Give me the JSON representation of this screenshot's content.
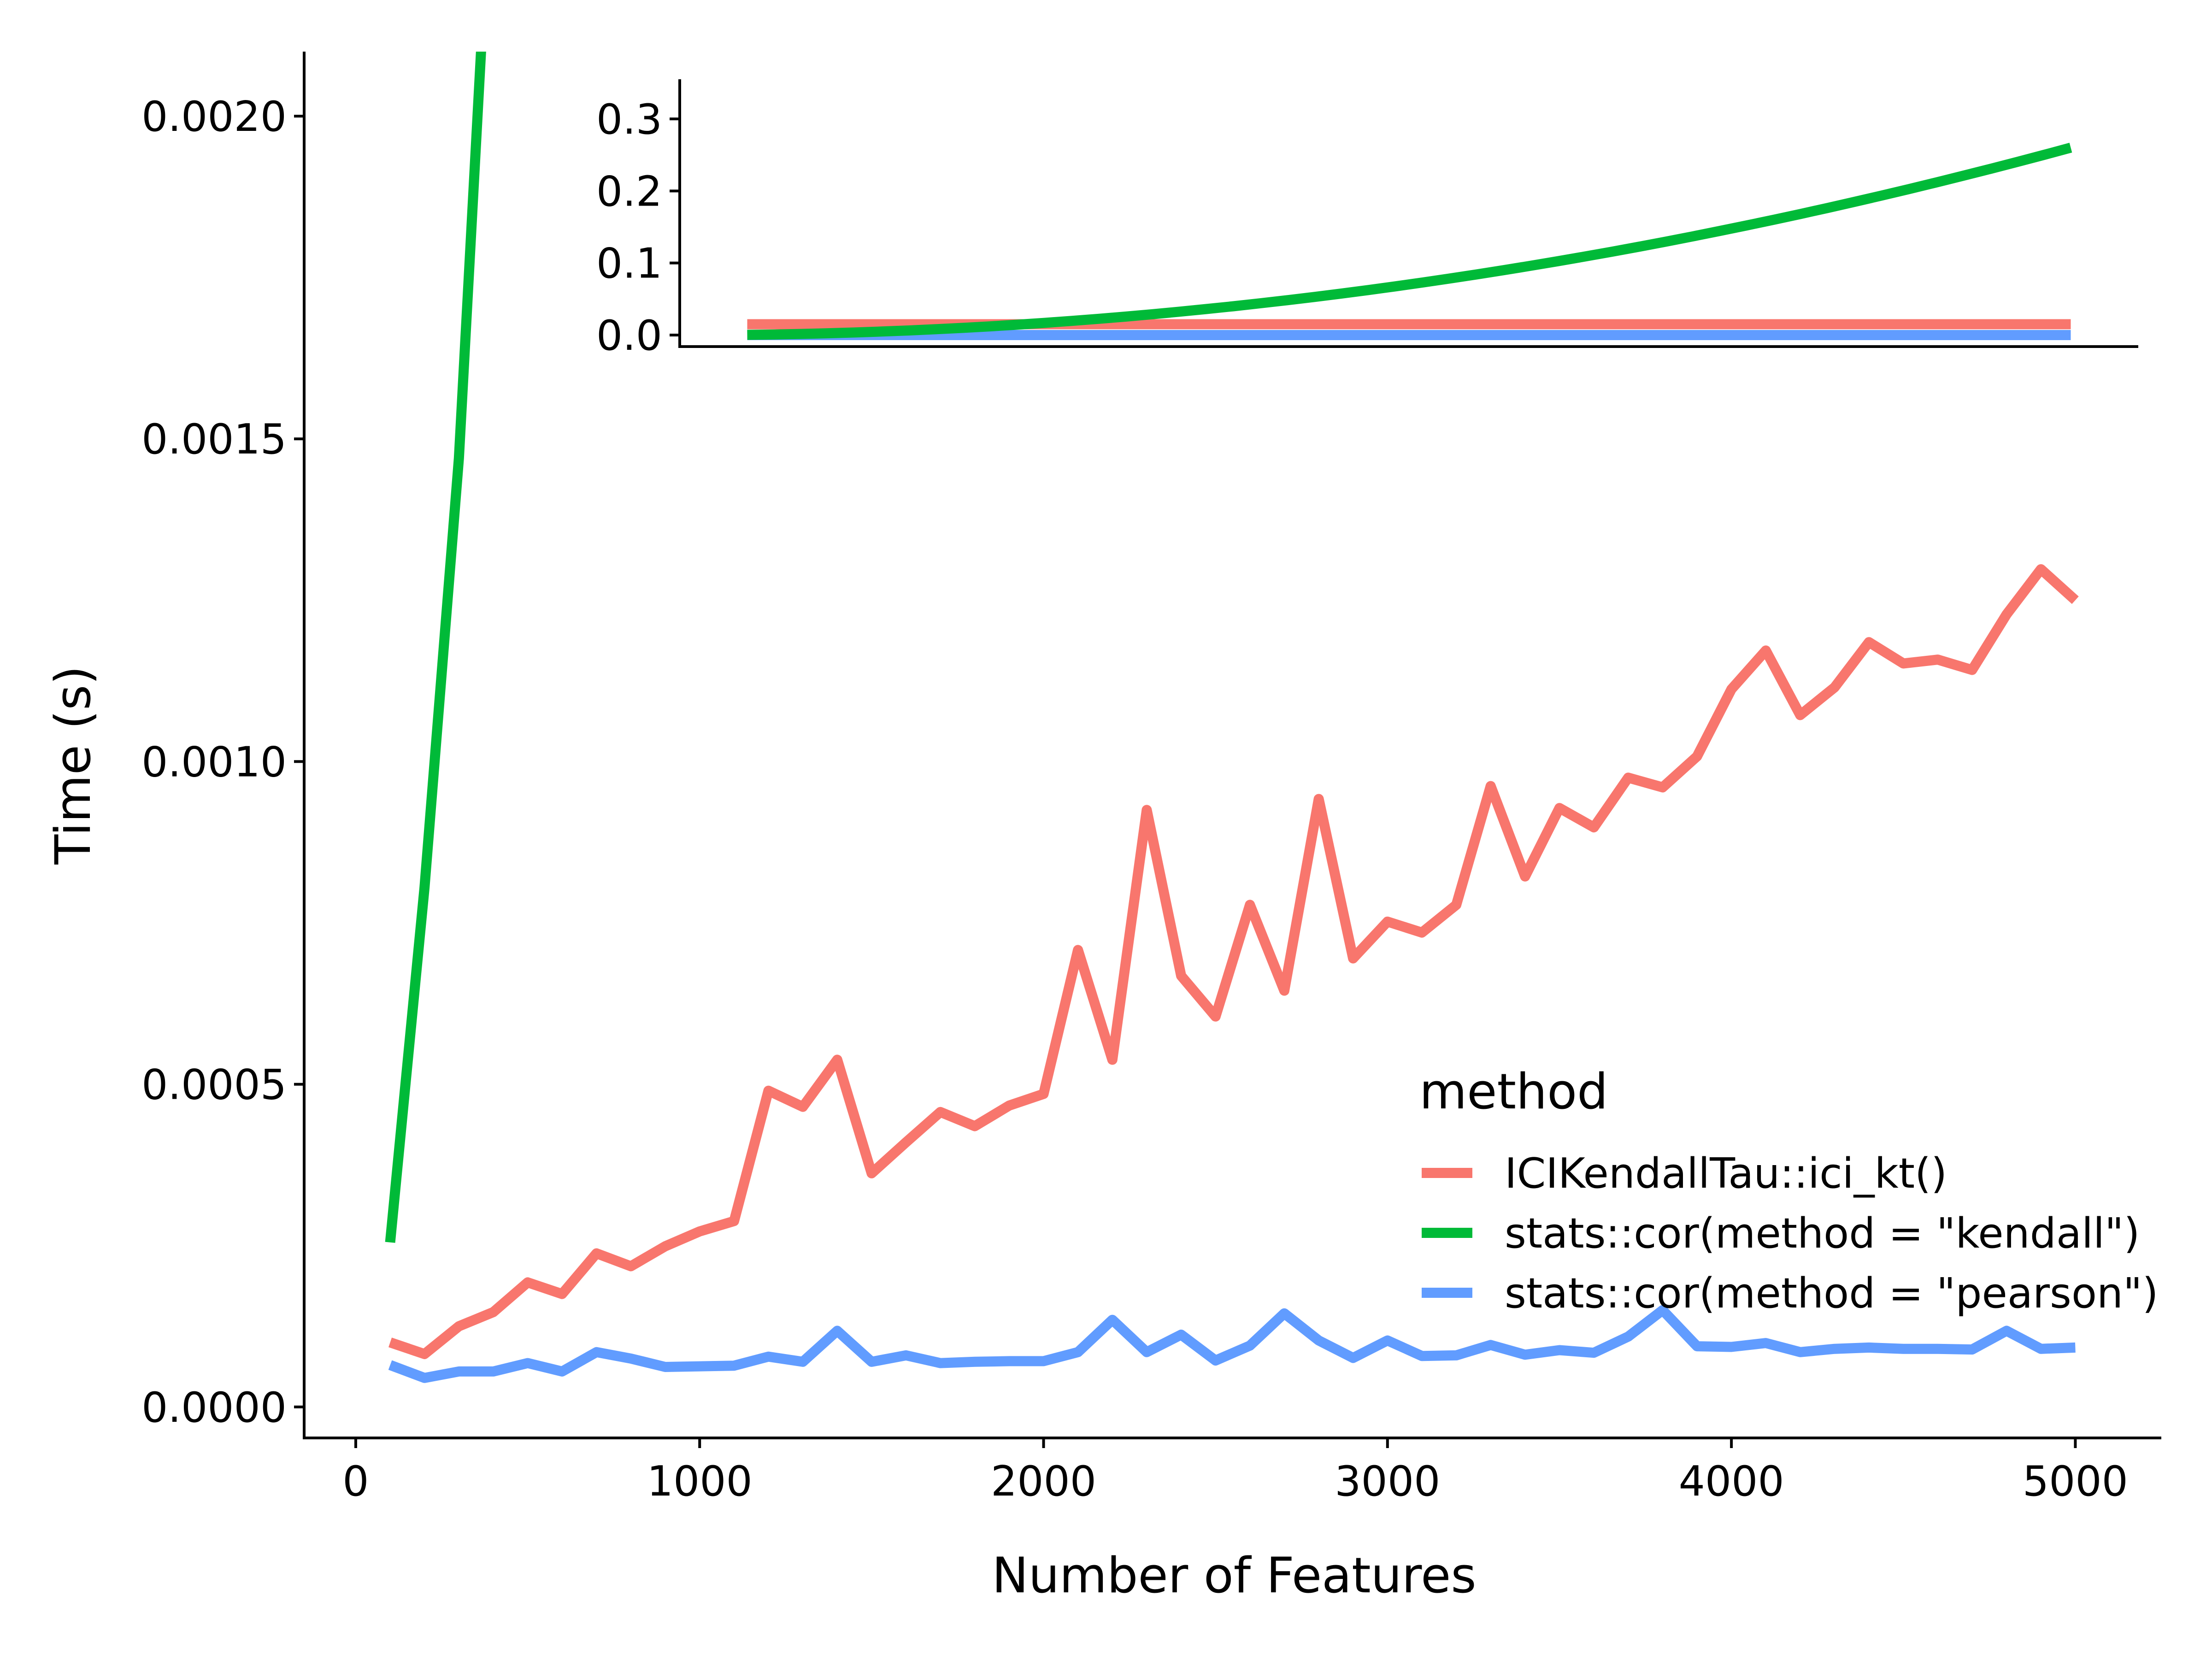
{
  "chart_data": {
    "type": "line",
    "xlabel": "Number of Features",
    "ylabel": "Time (s)",
    "xlim": [
      -150,
      5250
    ],
    "ylim": [
      -4.8e-05,
      0.0021
    ],
    "xticks": [
      "0",
      "1000",
      "2000",
      "3000",
      "4000",
      "5000"
    ],
    "xtick_values": [
      0,
      1000,
      2000,
      3000,
      4000,
      5000
    ],
    "yticks": [
      "0.0000",
      "0.0005",
      "0.0010",
      "0.0015",
      "0.0020"
    ],
    "ytick_values": [
      0,
      0.0005,
      0.001,
      0.0015,
      0.002
    ],
    "grid": false,
    "legend_title": "method",
    "legend_position": "right",
    "x": [
      100,
      200,
      300,
      400,
      500,
      600,
      700,
      800,
      900,
      1000,
      1100,
      1200,
      1300,
      1400,
      1500,
      1600,
      1700,
      1800,
      1900,
      2000,
      2100,
      2200,
      2300,
      2400,
      2500,
      2600,
      2700,
      2800,
      2900,
      3000,
      3100,
      3200,
      3300,
      3400,
      3500,
      3600,
      3700,
      3800,
      3900,
      4000,
      4100,
      4200,
      4300,
      4400,
      4500,
      4600,
      4700,
      4800,
      4900,
      5000
    ],
    "series": [
      {
        "name": "ICIKendallTau::ici_kt()",
        "color": "#F8766D",
        "values": [
          0.0001,
          8.2e-05,
          0.000125,
          0.000147,
          0.000193,
          0.000175,
          0.000238,
          0.000218,
          0.000249,
          0.000272,
          0.000288,
          0.00049,
          0.000465,
          0.000538,
          0.000362,
          0.00041,
          0.000457,
          0.000435,
          0.000467,
          0.000485,
          0.000708,
          0.000538,
          0.000925,
          0.000668,
          0.000605,
          0.000778,
          0.000645,
          0.000942,
          0.000695,
          0.000752,
          0.000735,
          0.000778,
          0.000962,
          0.000822,
          0.000928,
          0.000898,
          0.000975,
          0.00096,
          0.001008,
          0.001112,
          0.001172,
          0.001072,
          0.001115,
          0.001185,
          0.001152,
          0.001158,
          0.001142,
          0.001228,
          0.001298,
          0.00125
        ]
      },
      {
        "name": "stats::cor(method = \"kendall\")",
        "color": "#00BA38",
        "values": [
          0.000255,
          0.000805,
          0.00147,
          0.00245,
          0.0036,
          0.0049,
          0.0064,
          0.0081,
          0.01,
          0.0121,
          0.0144,
          0.0169,
          0.0196,
          0.0225,
          0.0256,
          0.0289,
          0.0324,
          0.0361,
          0.04,
          0.0441,
          0.0484,
          0.0529,
          0.0576,
          0.0625,
          0.0676,
          0.0729,
          0.0784,
          0.0841,
          0.09,
          0.0961,
          0.1024,
          0.1089,
          0.1156,
          0.1225,
          0.1296,
          0.1369,
          0.1444,
          0.1521,
          0.16,
          0.1681,
          0.1764,
          0.1849,
          0.1936,
          0.2025,
          0.2116,
          0.2209,
          0.2304,
          0.2401,
          0.25,
          0.2601
        ]
      },
      {
        "name": "stats::cor(method = \"pearson\")",
        "color": "#619CFF",
        "values": [
          6.5e-05,
          4.5e-05,
          5.5e-05,
          5.5e-05,
          6.8e-05,
          5.5e-05,
          8.5e-05,
          7.5e-05,
          6.2e-05,
          6.3e-05,
          6.4e-05,
          7.8e-05,
          7e-05,
          0.000118,
          7e-05,
          8e-05,
          6.8e-05,
          7e-05,
          7.1e-05,
          7.1e-05,
          8.5e-05,
          0.000135,
          8.5e-05,
          0.000112,
          7.2e-05,
          9.5e-05,
          0.000145,
          0.000103,
          7.6e-05,
          0.000103,
          7.9e-05,
          8e-05,
          9.6e-05,
          8.1e-05,
          8.8e-05,
          8.4e-05,
          0.000109,
          0.00015,
          9.4e-05,
          9.3e-05,
          9.9e-05,
          8.5e-05,
          9e-05,
          9.2e-05,
          9e-05,
          9e-05,
          8.9e-05,
          0.000118,
          9e-05,
          9.2e-05
        ]
      }
    ],
    "inset": {
      "type": "line",
      "xlim": [
        -150,
        5250
      ],
      "ylim": [
        -0.016,
        0.355
      ],
      "yticks": [
        "0.0",
        "0.1",
        "0.2",
        "0.3"
      ],
      "ytick_values": [
        0,
        0.1,
        0.2,
        0.3
      ],
      "x_from": 100,
      "x_to": 5000,
      "series": [
        {
          "name": "ICIKendallTau::ici_kt()",
          "color": "#F8766D",
          "values": [
            0.015,
            0.015
          ]
        },
        {
          "name": "stats::cor(method = \"kendall\")",
          "color": "#00BA38",
          "values": [
            0.0003,
            0.0008,
            0.0015,
            0.0025,
            0.0036,
            0.0049,
            0.0064,
            0.0081,
            0.01,
            0.0121,
            0.0144,
            0.0169,
            0.0196,
            0.0225,
            0.0256,
            0.0289,
            0.0324,
            0.0361,
            0.04,
            0.0441,
            0.0484,
            0.0529,
            0.0576,
            0.0625,
            0.0676,
            0.0729,
            0.0784,
            0.0841,
            0.09,
            0.0961,
            0.1024,
            0.1089,
            0.1156,
            0.1225,
            0.1296,
            0.1369,
            0.1444,
            0.1521,
            0.16,
            0.1681,
            0.1764,
            0.1849,
            0.1936,
            0.2025,
            0.2116,
            0.2209,
            0.2304,
            0.2401,
            0.25,
            0.2601
          ]
        },
        {
          "name": "stats::cor(method = \"pearson\")",
          "color": "#619CFF",
          "values": [
            0.0,
            0.0
          ]
        }
      ]
    }
  }
}
